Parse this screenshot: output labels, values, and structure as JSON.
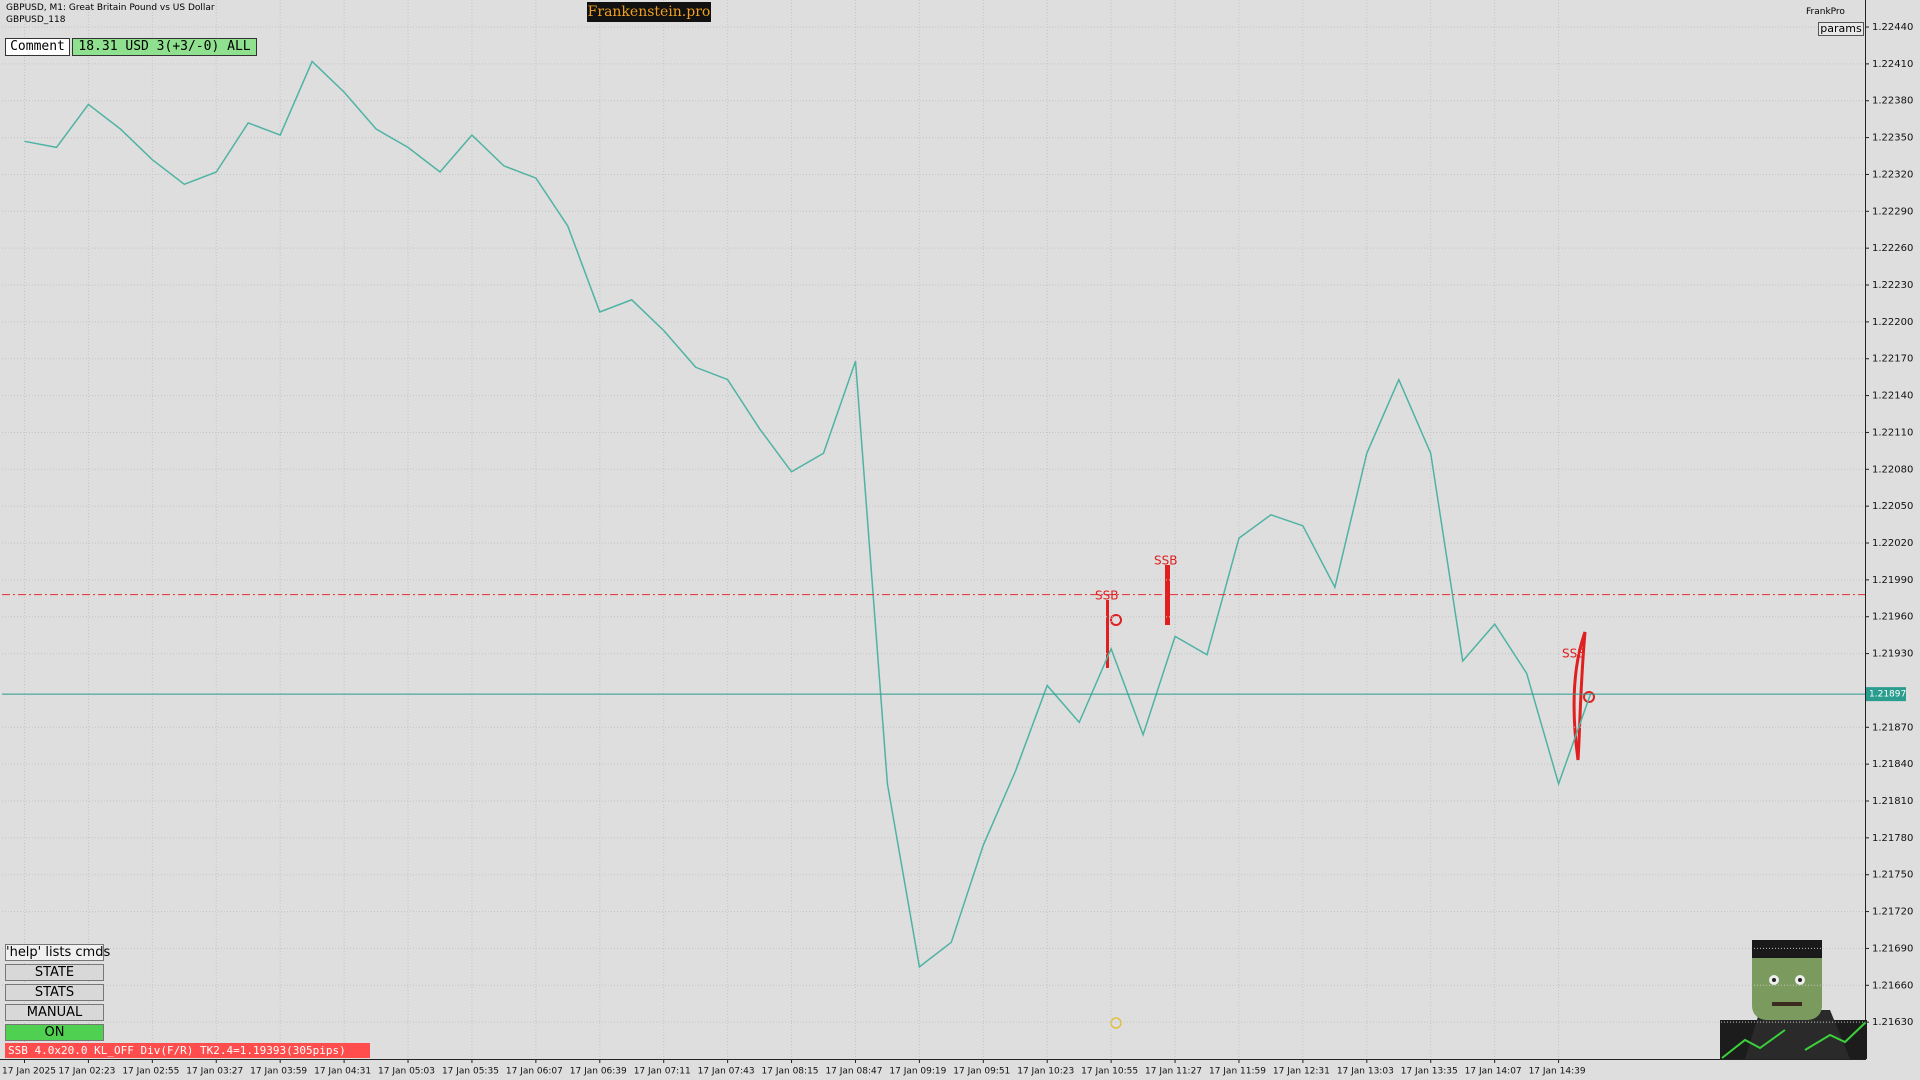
{
  "chart_data": {
    "type": "line",
    "symbol": "GBPUSD, M1:  Great Britain Pound vs US Dollar",
    "subtitle": "GBPUSD_118",
    "categories": [
      "17 Jan 2025",
      null,
      "17 Jan 02:23",
      null,
      "17 Jan 02:55",
      null,
      "17 Jan 03:27",
      null,
      "17 Jan 03:59",
      null,
      "17 Jan 04:31",
      null,
      "17 Jan 05:03",
      null,
      "17 Jan 05:35",
      null,
      "17 Jan 06:07",
      null,
      "17 Jan 06:39",
      null,
      "17 Jan 07:11",
      null,
      "17 Jan 07:43",
      null,
      "17 Jan 08:15",
      null,
      "17 Jan 08:47",
      null,
      "17 Jan 09:19",
      null,
      "17 Jan 09:51",
      null,
      "17 Jan 10:23",
      null,
      "17 Jan 10:55",
      null,
      "17 Jan 11:27",
      null,
      "17 Jan 11:59",
      null,
      "17 Jan 12:31",
      null,
      "17 Jan 13:03",
      null,
      "17 Jan 13:35",
      null,
      "17 Jan 14:07",
      null,
      "17 Jan 14:39",
      null
    ],
    "series": [
      {
        "color": "#4fb3a3",
        "values": [
          1.22347,
          1.22342,
          1.22377,
          1.22357,
          1.22332,
          1.22312,
          1.22322,
          1.22362,
          1.22352,
          1.22412,
          1.22387,
          1.22357,
          1.22342,
          1.22322,
          1.22352,
          1.22327,
          1.22317,
          1.22278,
          1.22208,
          1.22218,
          1.22193,
          1.22163,
          1.22153,
          1.22113,
          1.22078,
          1.22093,
          1.22168,
          1.21824,
          1.21675,
          1.21695,
          1.21774,
          1.21834,
          1.21904,
          1.21874,
          1.21934,
          1.21864,
          1.21944,
          1.21929,
          1.22024,
          1.22043,
          1.22034,
          1.21984,
          1.22093,
          1.22153,
          1.22093,
          1.21924,
          1.21954,
          1.21914,
          1.21824,
          1.21897
        ]
      }
    ],
    "ylim": [
      1.216,
      1.22462
    ],
    "yticks": [
      {
        "value": 1.2244,
        "label": "1.22440"
      },
      {
        "value": 1.2241,
        "label": "1.22410"
      },
      {
        "value": 1.2238,
        "label": "1.22380"
      },
      {
        "value": 1.2235,
        "label": "1.22350"
      },
      {
        "value": 1.2232,
        "label": "1.22320"
      },
      {
        "value": 1.2229,
        "label": "1.22290"
      },
      {
        "value": 1.2226,
        "label": "1.22260"
      },
      {
        "value": 1.2223,
        "label": "1.22230"
      },
      {
        "value": 1.222,
        "label": "1.22200"
      },
      {
        "value": 1.2217,
        "label": "1.22170"
      },
      {
        "value": 1.2214,
        "label": "1.22140"
      },
      {
        "value": 1.2211,
        "label": "1.22110"
      },
      {
        "value": 1.2208,
        "label": "1.22080"
      },
      {
        "value": 1.2205,
        "label": "1.22050"
      },
      {
        "value": 1.2202,
        "label": "1.22020"
      },
      {
        "value": 1.2199,
        "label": "1.21990"
      },
      {
        "value": 1.2196,
        "label": "1.21960"
      },
      {
        "value": 1.2193,
        "label": "1.21930"
      },
      {
        "value": 1.2187,
        "label": "1.21870"
      },
      {
        "value": 1.2184,
        "label": "1.21840"
      },
      {
        "value": 1.2181,
        "label": "1.21810"
      },
      {
        "value": 1.2178,
        "label": "1.21780"
      },
      {
        "value": 1.2175,
        "label": "1.21750"
      },
      {
        "value": 1.2172,
        "label": "1.21720"
      },
      {
        "value": 1.2169,
        "label": "1.21690"
      },
      {
        "value": 1.2166,
        "label": "1.21660"
      },
      {
        "value": 1.2163,
        "label": "1.21630"
      }
    ],
    "grid": true,
    "current_price": 1.21897,
    "current_color": "#2a9d8f",
    "level_line": 1.21978,
    "level_color": "#e03030",
    "annotations": [
      "SSB",
      "SSB",
      "SSB"
    ]
  },
  "ui": {
    "brand": "Frankenstein.pro",
    "comment": "Comment",
    "account": "18.31 USD 3(+3/-0) ALL",
    "profile": "FrankPro",
    "params": "params",
    "buttons": [
      "'help' lists cmds",
      "STATE",
      "STATS",
      "MANUAL",
      "ON"
    ],
    "status": "SSB 4.0x20.0 KL_OFF Div(F/R) TK2.4=1.19393(305pips)"
  }
}
